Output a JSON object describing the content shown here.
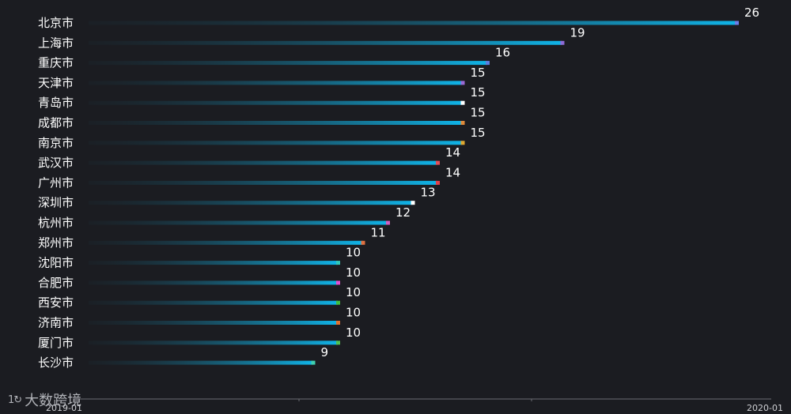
{
  "brand": {
    "logo_text": "1↻",
    "name": "大数跨境"
  },
  "chart_data": {
    "type": "bar",
    "orientation": "horizontal",
    "categories": [
      "北京市",
      "上海市",
      "重庆市",
      "天津市",
      "青岛市",
      "成都市",
      "南京市",
      "武汉市",
      "广州市",
      "深圳市",
      "杭州市",
      "郑州市",
      "沈阳市",
      "合肥市",
      "西安市",
      "济南市",
      "厦门市",
      "长沙市"
    ],
    "values": [
      26,
      19,
      16,
      15,
      15,
      15,
      15,
      14,
      14,
      13,
      12,
      11,
      10,
      10,
      10,
      10,
      10,
      9
    ],
    "dot_colors": [
      "#6a7fe8",
      "#8e6bd8",
      "#5c7ee0",
      "#9a6ad6",
      "#ffffff",
      "#e08a3a",
      "#e0a830",
      "#e0505a",
      "#e0404a",
      "#ffffff",
      "#d060c0",
      "#e07040",
      "#30c8b8",
      "#e050d0",
      "#40c040",
      "#e07030",
      "#50c050",
      "#40d0b0"
    ],
    "bar_colors": {
      "start": "#1b3a4a",
      "end": "#10b4e8"
    },
    "x_ticks": [
      "2019-01",
      "2020-01"
    ],
    "xlim": [
      0,
      26
    ]
  }
}
